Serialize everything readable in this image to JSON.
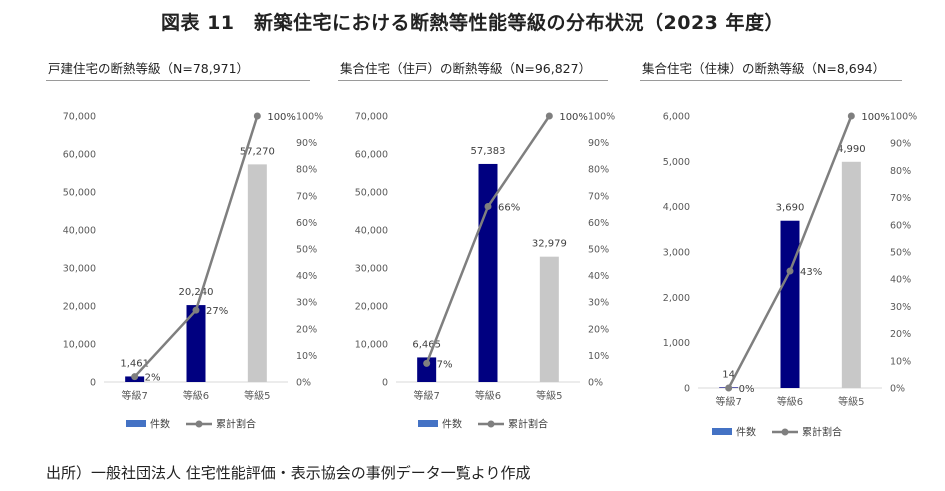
{
  "title": "図表 11　新築住宅における断熱等性能等級の分布状況（2023 年度）",
  "source": "出所）一般社団法人 住宅性能評価・表示協会の事例データ一覧より作成",
  "legend": {
    "bar": "件数",
    "line": "累計割合"
  },
  "colors": {
    "bar_primary": "#000080",
    "bar_highlight": "#c8c8c8",
    "line": "#7f7f7f",
    "legend_bar": "#4472c4"
  },
  "chart_data": [
    {
      "type": "bar",
      "title": "戸建住宅の断熱等級（N=78,971）",
      "categories": [
        "等級7",
        "等級6",
        "等級5"
      ],
      "series": [
        {
          "name": "件数",
          "values": [
            1461,
            20240,
            57270
          ],
          "value_labels": [
            "1,461",
            "20,240",
            "57,270"
          ],
          "axis": "left"
        },
        {
          "name": "累計割合",
          "type": "line",
          "values": [
            2,
            27,
            100
          ],
          "value_labels": [
            "2%",
            "27%",
            "100%"
          ],
          "axis": "right"
        }
      ],
      "ylim": [
        0,
        70000
      ],
      "yticks": [
        0,
        10000,
        20000,
        30000,
        40000,
        50000,
        60000,
        70000
      ],
      "ytick_labels": [
        "0",
        "10,000",
        "20,000",
        "30,000",
        "40,000",
        "50,000",
        "60,000",
        "70,000"
      ],
      "y2lim": [
        0,
        100
      ],
      "y2tick_labels": [
        "0%",
        "10%",
        "20%",
        "30%",
        "40%",
        "50%",
        "60%",
        "70%",
        "80%",
        "90%",
        "100%"
      ],
      "bar_colors": [
        "#000080",
        "#000080",
        "#c8c8c8"
      ],
      "legend_position": "bottom",
      "grid": false
    },
    {
      "type": "bar",
      "title": "集合住宅（住戸）の断熱等級（N=96,827）",
      "categories": [
        "等級7",
        "等級6",
        "等級5"
      ],
      "series": [
        {
          "name": "件数",
          "values": [
            6465,
            57383,
            32979
          ],
          "value_labels": [
            "6,465",
            "57,383",
            "32,979"
          ],
          "axis": "left"
        },
        {
          "name": "累計割合",
          "type": "line",
          "values": [
            7,
            66,
            100
          ],
          "value_labels": [
            "7%",
            "66%",
            "100%"
          ],
          "axis": "right"
        }
      ],
      "ylim": [
        0,
        70000
      ],
      "yticks": [
        0,
        10000,
        20000,
        30000,
        40000,
        50000,
        60000,
        70000
      ],
      "ytick_labels": [
        "0",
        "10,000",
        "20,000",
        "30,000",
        "40,000",
        "50,000",
        "60,000",
        "70,000"
      ],
      "y2lim": [
        0,
        100
      ],
      "y2tick_labels": [
        "0%",
        "10%",
        "20%",
        "30%",
        "40%",
        "50%",
        "60%",
        "70%",
        "80%",
        "90%",
        "100%"
      ],
      "bar_colors": [
        "#000080",
        "#000080",
        "#c8c8c8"
      ],
      "legend_position": "bottom",
      "grid": false
    },
    {
      "type": "bar",
      "title": "集合住宅（住棟）の断熱等級（N=8,694）",
      "categories": [
        "等級7",
        "等級6",
        "等級5"
      ],
      "series": [
        {
          "name": "件数",
          "values": [
            14,
            3690,
            4990
          ],
          "value_labels": [
            "14",
            "3,690",
            "4,990"
          ],
          "axis": "left"
        },
        {
          "name": "累計割合",
          "type": "line",
          "values": [
            0,
            43,
            100
          ],
          "value_labels": [
            "0%",
            "43%",
            "100%"
          ],
          "axis": "right"
        }
      ],
      "ylim": [
        0,
        6000
      ],
      "yticks": [
        0,
        1000,
        2000,
        3000,
        4000,
        5000,
        6000
      ],
      "ytick_labels": [
        "0",
        "1,000",
        "2,000",
        "3,000",
        "4,000",
        "5,000",
        "6,000"
      ],
      "y2lim": [
        0,
        100
      ],
      "y2tick_labels": [
        "0%",
        "10%",
        "20%",
        "30%",
        "40%",
        "50%",
        "60%",
        "70%",
        "80%",
        "90%",
        "100%"
      ],
      "bar_colors": [
        "#000080",
        "#000080",
        "#c8c8c8"
      ],
      "legend_position": "bottom",
      "grid": false
    }
  ]
}
